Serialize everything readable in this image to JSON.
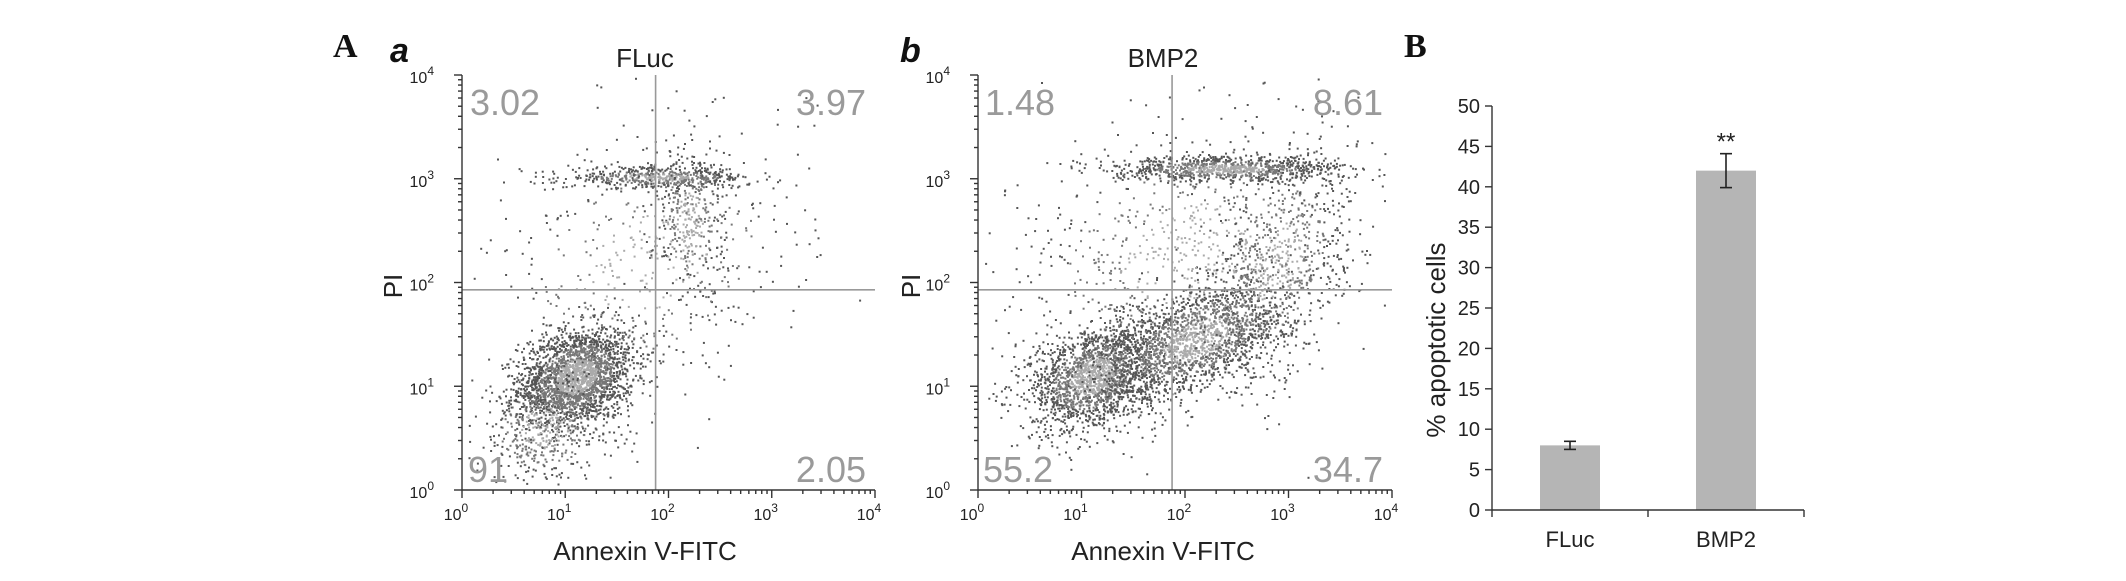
{
  "figure": {
    "panel_A_label": "A",
    "panel_B_label": "B"
  },
  "chart_data": [
    {
      "type": "scatter",
      "panel": "a",
      "title": "FLuc",
      "xlabel": "Annexin V-FITC",
      "ylabel": "PI",
      "xscale": "log",
      "yscale": "log",
      "xlim": [
        1,
        10000
      ],
      "ylim": [
        1,
        10000
      ],
      "x_ticks": [
        1,
        10,
        100,
        1000,
        10000
      ],
      "y_ticks": [
        1,
        10,
        100,
        1000,
        10000
      ],
      "gate_x": 75,
      "gate_y": 85,
      "quadrants": {
        "upper_left": "3.02",
        "upper_right": "3.97",
        "lower_left": "91",
        "lower_right": "2.05"
      }
    },
    {
      "type": "scatter",
      "panel": "b",
      "title": "BMP2",
      "xlabel": "Annexin V-FITC",
      "ylabel": "PI",
      "xscale": "log",
      "yscale": "log",
      "xlim": [
        1,
        10000
      ],
      "ylim": [
        1,
        10000
      ],
      "x_ticks": [
        1,
        10,
        100,
        1000,
        10000
      ],
      "y_ticks": [
        1,
        10,
        100,
        1000,
        10000
      ],
      "gate_x": 75,
      "gate_y": 85,
      "quadrants": {
        "upper_left": "1.48",
        "upper_right": "8.61",
        "lower_left": "55.2",
        "lower_right": "34.7"
      }
    },
    {
      "type": "bar",
      "panel": "B",
      "categories": [
        "FLuc",
        "BMP2"
      ],
      "values": [
        8,
        42
      ],
      "errors": [
        0.5,
        2.1
      ],
      "significance": [
        "",
        "**"
      ],
      "ylabel": "% apoptotic cells",
      "ylim": [
        0,
        50
      ],
      "y_ticks": [
        0,
        5,
        10,
        15,
        20,
        25,
        30,
        35,
        40,
        45,
        50
      ],
      "bar_color": "#b5b5b5"
    }
  ]
}
